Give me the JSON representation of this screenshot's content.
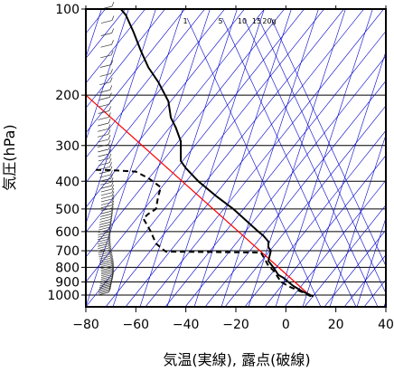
{
  "chart_data": {
    "type": "line",
    "title": "",
    "xlabel": "気温(実線), 露点(破線)",
    "ylabel": "気圧(hPa)",
    "xlim": [
      -80,
      40
    ],
    "ylim": [
      1050,
      100
    ],
    "y_scale": "log",
    "x_ticks": [
      "−80",
      "−60",
      "−40",
      "−20",
      "0",
      "20",
      "40"
    ],
    "x_tick_values": [
      -80,
      -60,
      -40,
      -20,
      0,
      20,
      40
    ],
    "y_ticks": [
      "100",
      "200",
      "300",
      "400",
      "500",
      "600",
      "700",
      "800",
      "900",
      "1000"
    ],
    "y_tick_values": [
      100,
      200,
      300,
      400,
      500,
      600,
      700,
      800,
      900,
      1000
    ],
    "mixing_ratio_labels": [
      {
        "label": "1",
        "value": 1
      },
      {
        "label": "5",
        "value": 5
      },
      {
        "label": "10",
        "value": 10
      },
      {
        "label": "15",
        "value": 15
      },
      {
        "label": "20g",
        "value": 20
      }
    ],
    "series": [
      {
        "role": "temperature",
        "style": "solid",
        "color": "#000000",
        "points": [
          {
            "p": 1010,
            "t": 11
          },
          {
            "p": 975,
            "t": 7
          },
          {
            "p": 930,
            "t": 3
          },
          {
            "p": 900,
            "t": 1
          },
          {
            "p": 870,
            "t": -1
          },
          {
            "p": 850,
            "t": -3
          },
          {
            "p": 800,
            "t": -5
          },
          {
            "p": 760,
            "t": -7
          },
          {
            "p": 700,
            "t": -6
          },
          {
            "p": 680,
            "t": -7
          },
          {
            "p": 650,
            "t": -7
          },
          {
            "p": 620,
            "t": -9
          },
          {
            "p": 600,
            "t": -11
          },
          {
            "p": 500,
            "t": -21
          },
          {
            "p": 450,
            "t": -28
          },
          {
            "p": 400,
            "t": -35
          },
          {
            "p": 360,
            "t": -40
          },
          {
            "p": 340,
            "t": -42
          },
          {
            "p": 310,
            "t": -42
          },
          {
            "p": 290,
            "t": -42
          },
          {
            "p": 260,
            "t": -44
          },
          {
            "p": 240,
            "t": -46
          },
          {
            "p": 210,
            "t": -47
          },
          {
            "p": 180,
            "t": -51
          },
          {
            "p": 160,
            "t": -55
          },
          {
            "p": 140,
            "t": -58
          },
          {
            "p": 120,
            "t": -61
          },
          {
            "p": 105,
            "t": -64
          },
          {
            "p": 100,
            "t": -66
          }
        ]
      },
      {
        "role": "dewpoint",
        "style": "dashed",
        "color": "#000000",
        "points": [
          {
            "p": 1010,
            "t": 10
          },
          {
            "p": 980,
            "t": 7
          },
          {
            "p": 940,
            "t": 2
          },
          {
            "p": 900,
            "t": -2
          },
          {
            "p": 870,
            "t": -3
          },
          {
            "p": 820,
            "t": -5
          },
          {
            "p": 790,
            "t": -7
          },
          {
            "p": 760,
            "t": -8
          },
          {
            "p": 710,
            "t": -10
          },
          {
            "p": 705,
            "t": -48
          },
          {
            "p": 660,
            "t": -52
          },
          {
            "p": 600,
            "t": -54
          },
          {
            "p": 540,
            "t": -57
          },
          {
            "p": 520,
            "t": -55
          },
          {
            "p": 500,
            "t": -52
          },
          {
            "p": 450,
            "t": -51
          },
          {
            "p": 420,
            "t": -50
          },
          {
            "p": 390,
            "t": -55
          },
          {
            "p": 370,
            "t": -60
          },
          {
            "p": 365,
            "t": -72
          },
          {
            "p": 365,
            "t": -76
          }
        ]
      }
    ],
    "reference_line": {
      "color": "#ff0000",
      "points": [
        {
          "p": 1010,
          "t": 10
        },
        {
          "p": 200,
          "t": -80
        }
      ]
    },
    "isotherm_color": "#0000cc",
    "grid": true
  }
}
